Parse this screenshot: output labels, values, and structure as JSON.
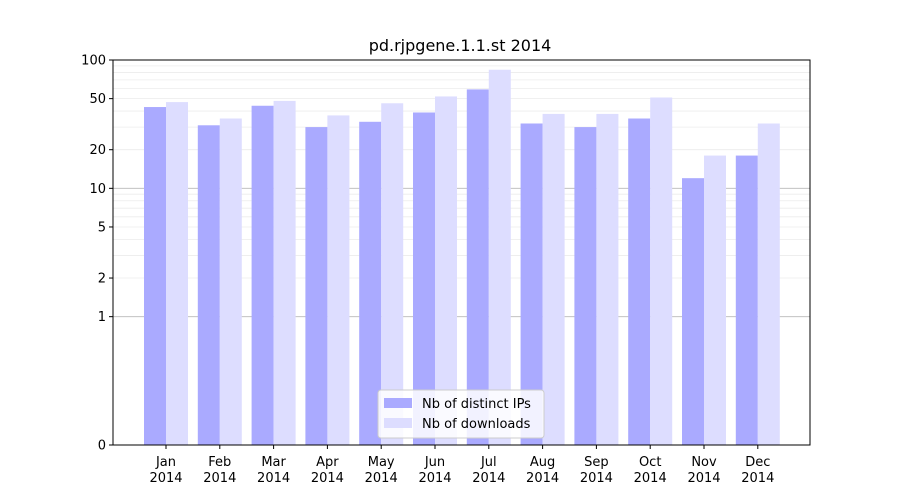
{
  "chart_data": {
    "type": "bar",
    "title": "pd.rjpgene.1.1.st 2014",
    "xlabel": "",
    "ylabel": "",
    "yscale": "symlog",
    "ylim": [
      0,
      100
    ],
    "yticks": [
      0,
      1,
      2,
      5,
      10,
      20,
      50,
      100
    ],
    "ytick_labels": [
      "0",
      "1",
      "2",
      "5",
      "10",
      "20",
      "50",
      "100"
    ],
    "categories": [
      "Jan\n2014",
      "Feb\n2014",
      "Mar\n2014",
      "Apr\n2014",
      "May\n2014",
      "Jun\n2014",
      "Jul\n2014",
      "Aug\n2014",
      "Sep\n2014",
      "Oct\n2014",
      "Nov\n2014",
      "Dec\n2014"
    ],
    "category_lines": [
      [
        "Jan",
        "2014"
      ],
      [
        "Feb",
        "2014"
      ],
      [
        "Mar",
        "2014"
      ],
      [
        "Apr",
        "2014"
      ],
      [
        "May",
        "2014"
      ],
      [
        "Jun",
        "2014"
      ],
      [
        "Jul",
        "2014"
      ],
      [
        "Aug",
        "2014"
      ],
      [
        "Sep",
        "2014"
      ],
      [
        "Oct",
        "2014"
      ],
      [
        "Nov",
        "2014"
      ],
      [
        "Dec",
        "2014"
      ]
    ],
    "series": [
      {
        "name": "Nb of distinct IPs",
        "color": "#aaaaff",
        "values": [
          43,
          31,
          44,
          30,
          33,
          39,
          59,
          32,
          30,
          35,
          12,
          18
        ]
      },
      {
        "name": "Nb of downloads",
        "color": "#ddddff",
        "values": [
          47,
          35,
          48,
          37,
          46,
          52,
          84,
          38,
          38,
          51,
          18,
          32
        ]
      }
    ],
    "legend_position": "lower-center",
    "grid": true
  }
}
